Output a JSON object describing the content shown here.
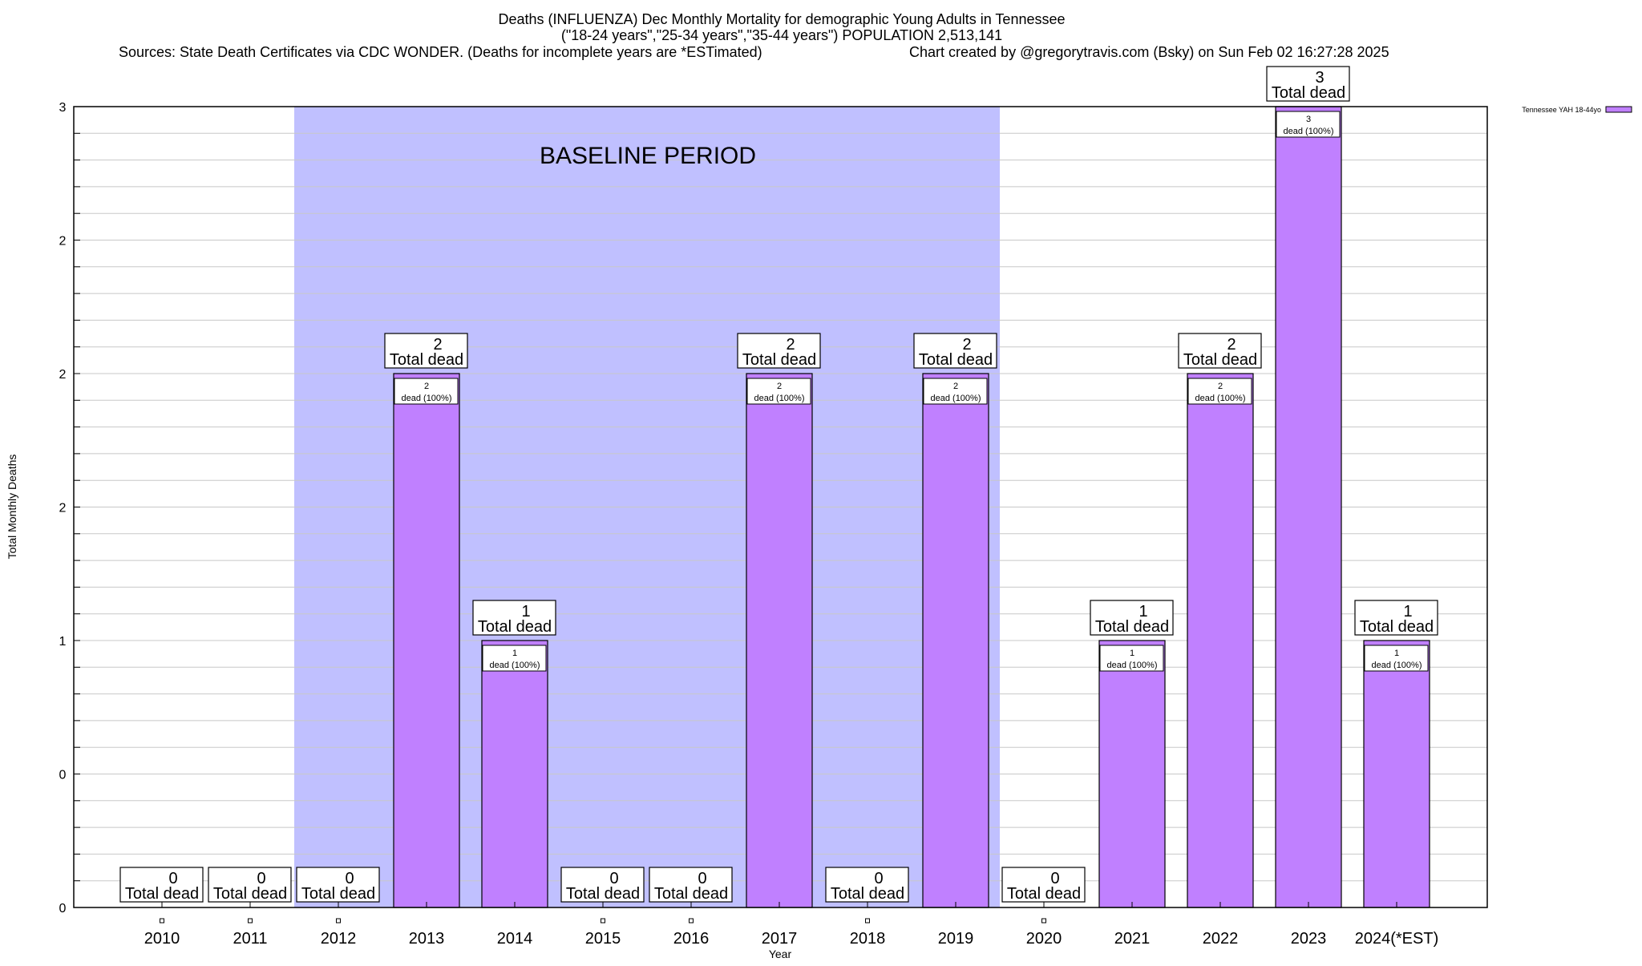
{
  "chart_data": {
    "type": "bar",
    "title_lines": [
      "Deaths (INFLUENZA) Dec Monthly Mortality for demographic Young Adults in Tennessee",
      "(\"18-24 years\",\"25-34 years\",\"35-44 years\") POPULATION 2,513,141"
    ],
    "sources": "Sources: State Death Certificates via CDC WONDER. (Deaths for incomplete years are *ESTimated)",
    "credit": "Chart created by @gregorytravis.com (Bsky) on Sun Feb 02 16:27:28 2025",
    "xlabel": "Year",
    "ylabel": "Total Monthly Deaths",
    "ylim": [
      0,
      3
    ],
    "yticks": [
      0,
      0.5,
      1,
      1.5,
      2,
      2.5,
      3
    ],
    "ytick_labels": [
      "0",
      "0",
      "1",
      "2",
      "2",
      "2",
      "3"
    ],
    "grid": true,
    "categories": [
      "2010",
      "2011",
      "2012",
      "2013",
      "2014",
      "2015",
      "2016",
      "2017",
      "2018",
      "2019",
      "2020",
      "2021",
      "2022",
      "2023",
      "2024(*EST)"
    ],
    "series": [
      {
        "name": "Tennessee YAH 18-44yo",
        "color": "#c080ff",
        "values": [
          0,
          0,
          0,
          2,
          1,
          0,
          0,
          2,
          0,
          2,
          0,
          1,
          2,
          3,
          1
        ]
      }
    ],
    "total_label": "Total dead",
    "bar_label_suffix": "dead (100%)",
    "annotation": {
      "text": "BASELINE PERIOD",
      "start": "2012",
      "end": "2019",
      "color": "#c0c0ff"
    },
    "legend_position": "top-right"
  }
}
